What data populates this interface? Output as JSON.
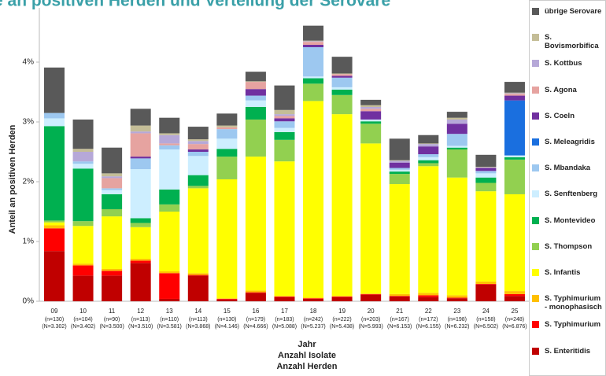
{
  "chart_data": {
    "type": "stacked_bar",
    "title": "e an positiven Herden und Verteilung der Serovare",
    "y_label": "Anteil an positiven Herden",
    "x_label": [
      "Jahr",
      "Anzahl Isolate",
      "Anzahl Herden"
    ],
    "categories": [
      "09",
      "10",
      "11",
      "12",
      "13",
      "14",
      "15",
      "16",
      "17",
      "18",
      "19",
      "20",
      "21",
      "22",
      "23",
      "24",
      "25"
    ],
    "isolates": [
      "(n=130)",
      "(n=104)",
      "(n=90)",
      "(n=113)",
      "(n=110)",
      "(n=113)",
      "(n=130)",
      "(n=179)",
      "(n=183)",
      "(n=242)",
      "(n=222)",
      "(n=203)",
      "(n=167)",
      "(n=172)",
      "(n=198)",
      "(n=158)",
      "(n=248)"
    ],
    "flocks": [
      "(N=3.302)",
      "(N=3.402)",
      "(N=3.500)",
      "(N=3.510)",
      "(N=3.581)",
      "(N=3.868)",
      "(N=4.146)",
      "(N=4.666)",
      "(N=5.088)",
      "(N=5.237)",
      "(N=5.438)",
      "(N=5.993)",
      "(N=6.153)",
      "(N=6.155)",
      "(N=6.232)",
      "(N=6.502)",
      "(N=6.876)"
    ],
    "ylim": [
      0,
      4.8
    ],
    "yticks": [
      {
        "value": 0,
        "label": "0%"
      },
      {
        "value": 1,
        "label": "1%"
      },
      {
        "value": 2,
        "label": "2%"
      },
      {
        "value": 3,
        "label": "3%"
      },
      {
        "value": 4,
        "label": "4%"
      }
    ],
    "series": [
      {
        "name": "S. Enteritidis",
        "color": "#c00000",
        "values": [
          0.84,
          0.43,
          0.43,
          0.64,
          0.04,
          0.43,
          0.03,
          0.14,
          0.07,
          0.04,
          0.07,
          0.11,
          0.08,
          0.07,
          0.05,
          0.28,
          0.09
        ]
      },
      {
        "name": "S. Typhimurium",
        "color": "#ff0000",
        "values": [
          0.38,
          0.17,
          0.08,
          0.04,
          0.43,
          0.01,
          0.01,
          0.01,
          0.01,
          0.01,
          0.01,
          0.01,
          0.01,
          0.03,
          0.01,
          0.01,
          0.03
        ]
      },
      {
        "name": "S. Typhimurium - monophasisch",
        "color": "#ffc000",
        "values": [
          0.05,
          0.03,
          0.03,
          0.03,
          0.03,
          0.03,
          0.01,
          0.03,
          0.01,
          0.01,
          0.01,
          0.01,
          0.03,
          0.04,
          0.04,
          0.04,
          0.05
        ]
      },
      {
        "name": "S. Infantis",
        "color": "#ffff00",
        "values": [
          0.05,
          0.63,
          0.88,
          0.53,
          1.0,
          1.42,
          1.99,
          2.24,
          2.25,
          3.29,
          3.04,
          2.51,
          1.84,
          2.12,
          1.97,
          1.51,
          1.62
        ]
      },
      {
        "name": "S. Thompson",
        "color": "#92d050",
        "values": [
          0.03,
          0.08,
          0.12,
          0.07,
          0.12,
          0.04,
          0.38,
          0.62,
          0.36,
          0.29,
          0.32,
          0.33,
          0.17,
          0.05,
          0.47,
          0.14,
          0.58
        ]
      },
      {
        "name": "S. Montevideo",
        "color": "#00b050",
        "values": [
          1.58,
          0.88,
          0.25,
          0.08,
          0.25,
          0.18,
          0.13,
          0.21,
          0.13,
          0.09,
          0.09,
          0.04,
          0.04,
          0.05,
          0.03,
          0.09,
          0.04
        ]
      },
      {
        "name": "S. Senftenberg",
        "color": "#cdeeff",
        "values": [
          0.13,
          0.08,
          0.07,
          0.82,
          0.67,
          0.32,
          0.17,
          0.11,
          0.07,
          0.03,
          0.04,
          0.03,
          0.03,
          0.05,
          0.03,
          0.07,
          0.03
        ]
      },
      {
        "name": "S. Mbandaka",
        "color": "#9dc8f0",
        "values": [
          0.09,
          0.04,
          0.03,
          0.18,
          0.07,
          0.07,
          0.16,
          0.08,
          0.11,
          0.49,
          0.16,
          0,
          0.03,
          0.05,
          0.2,
          0.04,
          0
        ]
      },
      {
        "name": "S. Meleagridis",
        "color": "#1a6fdf",
        "values": [
          0,
          0,
          0,
          0,
          0,
          0,
          0,
          0,
          0,
          0,
          0,
          0,
          0,
          0,
          0,
          0,
          0.92
        ]
      },
      {
        "name": "S. Coeln",
        "color": "#7030a0",
        "values": [
          0,
          0,
          0,
          0.03,
          0,
          0.04,
          0,
          0.11,
          0.05,
          0.04,
          0.03,
          0.14,
          0.09,
          0.13,
          0.17,
          0.05,
          0.08
        ]
      },
      {
        "name": "S. Agona",
        "color": "#e6a3a0",
        "values": [
          0,
          0,
          0.17,
          0.39,
          0.03,
          0.09,
          0.03,
          0.12,
          0.04,
          0.05,
          0.03,
          0.04,
          0,
          0,
          0,
          0,
          0.03
        ]
      },
      {
        "name": "S. Kottbus",
        "color": "#b6a8d8",
        "values": [
          0,
          0.16,
          0.03,
          0.03,
          0.14,
          0.05,
          0,
          0,
          0.03,
          0.01,
          0,
          0.03,
          0.03,
          0.04,
          0.07,
          0.01,
          0.01
        ]
      },
      {
        "name": "S. Bovismorbifica",
        "color": "#c4bd97",
        "values": [
          0,
          0.05,
          0.05,
          0.1,
          0.03,
          0.03,
          0.03,
          0.01,
          0.07,
          0.01,
          0.01,
          0.03,
          0.01,
          0.01,
          0.03,
          0.01,
          0.01
        ]
      },
      {
        "name": "übrige Serovare",
        "color": "#595959",
        "values": [
          0.76,
          0.49,
          0.43,
          0.28,
          0.26,
          0.21,
          0.2,
          0.16,
          0.41,
          0.25,
          0.28,
          0.09,
          0.36,
          0.14,
          0.1,
          0.2,
          0.18
        ]
      }
    ]
  }
}
